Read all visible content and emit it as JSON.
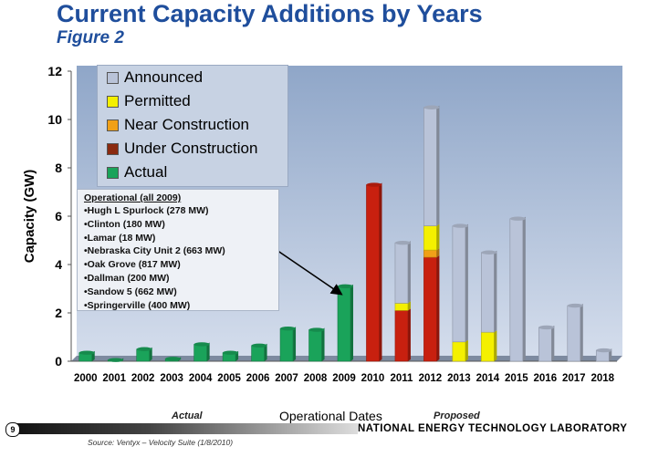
{
  "title": "Current Capacity Additions by Years",
  "subtitle": "Figure 2",
  "chart_data": {
    "type": "bar",
    "stacked": true,
    "categories": [
      "2000",
      "2001",
      "2002",
      "2003",
      "2004",
      "2005",
      "2006",
      "2007",
      "2008",
      "2009",
      "2010",
      "2011",
      "2012",
      "2013",
      "2014",
      "2015",
      "2016",
      "2017",
      "2018"
    ],
    "series": [
      {
        "name": "Actual",
        "color": "#1aa35a",
        "values": [
          0.35,
          0.05,
          0.5,
          0.1,
          0.7,
          0.35,
          0.65,
          1.35,
          1.3,
          3.1,
          0,
          0,
          0,
          0,
          0,
          0,
          0,
          0,
          0
        ]
      },
      {
        "name": "Under Construction",
        "color": "#c8200f",
        "values": [
          0,
          0,
          0,
          0,
          0,
          0,
          0,
          0,
          0,
          0,
          7.3,
          2.1,
          4.3,
          0,
          0,
          0,
          0,
          0,
          0
        ]
      },
      {
        "name": "Near Construction",
        "color": "#f0a018",
        "values": [
          0,
          0,
          0,
          0,
          0,
          0,
          0,
          0,
          0,
          0,
          0,
          0,
          0.3,
          0,
          0,
          0,
          0,
          0,
          0
        ]
      },
      {
        "name": "Permitted",
        "color": "#f4f000",
        "values": [
          0,
          0,
          0,
          0,
          0,
          0,
          0,
          0,
          0,
          0,
          0,
          0.3,
          1.0,
          0.8,
          1.2,
          0,
          0,
          0,
          0
        ]
      },
      {
        "name": "Announced",
        "color": "#b9c3d8",
        "values": [
          0,
          0,
          0,
          0,
          0,
          0,
          0,
          0,
          0,
          0,
          0,
          2.5,
          4.9,
          4.8,
          3.3,
          5.9,
          1.4,
          2.3,
          0.45
        ]
      }
    ],
    "legend_order": [
      "Announced",
      "Permitted",
      "Near Construction",
      "Under Construction",
      "Actual"
    ],
    "ylabel": "Capacity (GW)",
    "xlabel": "Operational Dates",
    "ylim": [
      0,
      12
    ],
    "yticks": [
      "0",
      "2",
      "4",
      "6",
      "8",
      "10",
      "12"
    ],
    "grid": false,
    "legend_position": "top-left"
  },
  "annotation": {
    "heading": "Operational (all 2009)",
    "items": [
      "•Hugh L Spurlock (278 MW)",
      "•Clinton (180 MW)",
      "•Lamar (18 MW)",
      "•Nebraska City Unit 2 (663 MW)",
      "•Oak Grove (817 MW)",
      "•Dallman (200 MW)",
      "•Sandow 5 (662 MW)",
      "•Springerville (400 MW)"
    ]
  },
  "labels": {
    "actual": "Actual",
    "proposed": "Proposed"
  },
  "footer": {
    "page_number": "9",
    "organization": "NATIONAL ENERGY TECHNOLOGY LABORATORY",
    "source": "Source: Ventyx – Velocity Suite (1/8/2010)"
  }
}
